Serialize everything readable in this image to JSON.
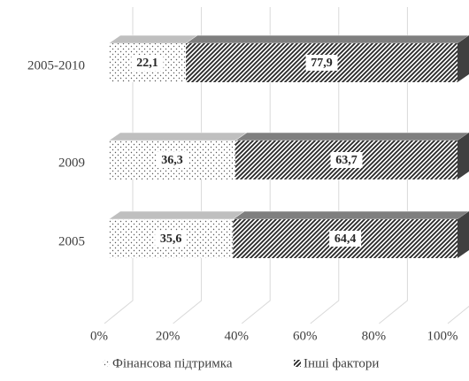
{
  "chart_data": {
    "type": "stacked-bar-3d",
    "orientation": "horizontal",
    "categories": [
      "2005-2010",
      "2009",
      "2005"
    ],
    "series": [
      {
        "name": "Фінансова підтримка",
        "color": "#595959",
        "pattern": "dots",
        "values": [
          22.1,
          36.3,
          35.6
        ],
        "value_labels": [
          "22,1",
          "36,3",
          "35,6"
        ]
      },
      {
        "name": "Інші фактори",
        "color": "#262626",
        "pattern": "hatch",
        "values": [
          77.9,
          63.7,
          64.4
        ],
        "value_labels": [
          "77,9",
          "63,7",
          "64,4"
        ]
      }
    ],
    "xlim": [
      0,
      100
    ],
    "xticks": [
      {
        "value": 0,
        "label": "0%"
      },
      {
        "value": 20,
        "label": "20%"
      },
      {
        "value": 40,
        "label": "40%"
      },
      {
        "value": 60,
        "label": "60%"
      },
      {
        "value": 80,
        "label": "80%"
      },
      {
        "value": 100,
        "label": "100%"
      }
    ],
    "grid": true,
    "legend": "bottom"
  }
}
